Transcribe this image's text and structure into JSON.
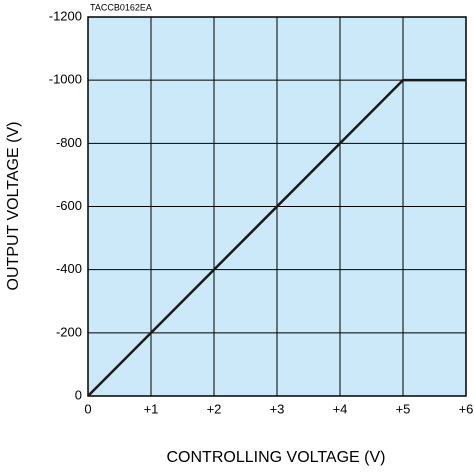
{
  "chart_data": {
    "type": "line",
    "annotation": "TACCB0162EA",
    "xlabel": "CONTROLLING VOLTAGE (V)",
    "ylabel": "OUTPUT VOLTAGE (V)",
    "x": [
      0,
      5,
      6
    ],
    "values": [
      0,
      -1000,
      -1000
    ],
    "color": "#1a1a1a",
    "background": "#cce9f9",
    "xlim": [
      0,
      6
    ],
    "xticks": [
      0,
      {
        "value": 1,
        "label": "+1"
      },
      {
        "value": 2,
        "label": "+2"
      },
      {
        "value": 3,
        "label": "+3"
      },
      {
        "value": 4,
        "label": "+4"
      },
      {
        "value": 5,
        "label": "+5"
      },
      {
        "value": 6,
        "label": "+6"
      }
    ],
    "ylim": [
      0,
      -1200
    ],
    "yticks": [
      0,
      -200,
      -400,
      -600,
      -800,
      -1000,
      -1200
    ],
    "grid": true
  }
}
